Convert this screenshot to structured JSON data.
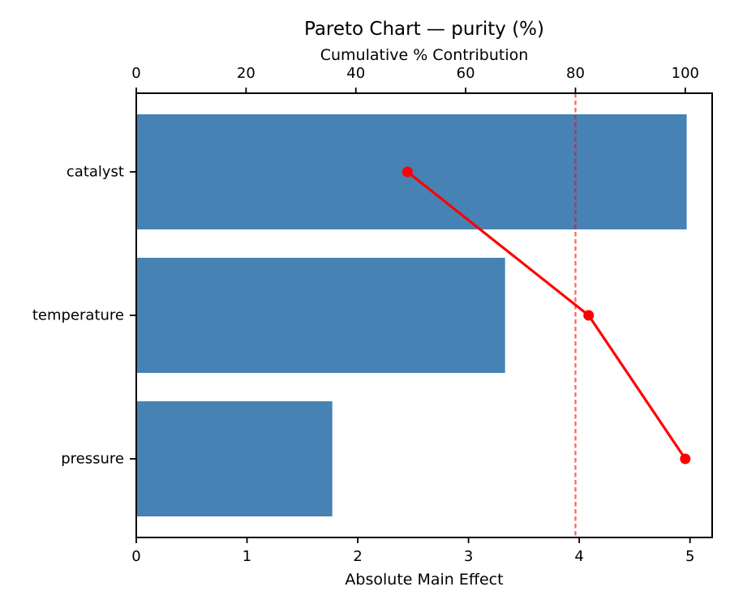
{
  "chart_data": {
    "type": "bar",
    "orientation": "horizontal",
    "title": "Pareto Chart — purity (%)",
    "categories": [
      "catalyst",
      "temperature",
      "pressure"
    ],
    "series": [
      {
        "name": "Absolute Main Effect",
        "type": "bar",
        "axis": "bottom",
        "color": "#4682b4",
        "values": [
          4.97,
          3.33,
          1.77
        ]
      },
      {
        "name": "Cumulative % Contribution",
        "type": "line",
        "axis": "top",
        "color": "#ff0000",
        "marker": "circle",
        "values": [
          49.4,
          82.4,
          100.0
        ]
      }
    ],
    "bottom_axis": {
      "label": "Absolute Main Effect",
      "range": [
        0,
        5.2
      ],
      "ticks": [
        0,
        1,
        2,
        3,
        4,
        5
      ]
    },
    "top_axis": {
      "label": "Cumulative % Contribution",
      "range": [
        0,
        104.9
      ],
      "ticks": [
        0,
        20,
        40,
        60,
        80,
        100
      ]
    },
    "reference_line": {
      "axis": "top",
      "value": 80,
      "color": "#ff0000",
      "opacity": 0.6,
      "style": "dashed"
    },
    "grid": false,
    "legend": "none"
  }
}
